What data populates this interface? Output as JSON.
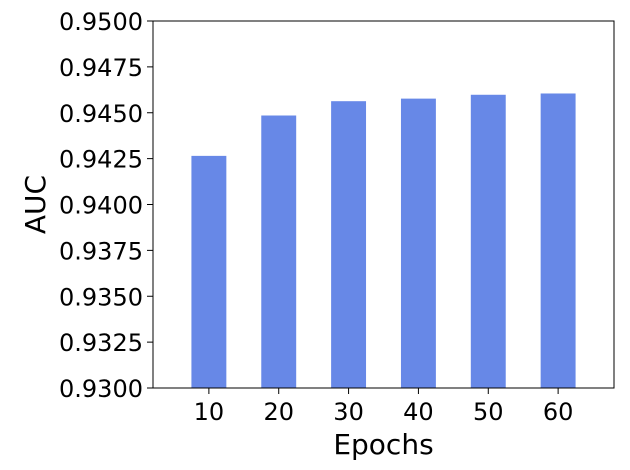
{
  "chart_data": {
    "type": "bar",
    "title": "",
    "xlabel": "Epochs",
    "ylabel": "AUC",
    "categories": [
      "10",
      "20",
      "30",
      "40",
      "50",
      "60"
    ],
    "values": [
      0.94265,
      0.94485,
      0.94563,
      0.94577,
      0.94598,
      0.94605
    ],
    "ylim": [
      0.93,
      0.95
    ],
    "yticks": [
      0.93,
      0.9325,
      0.935,
      0.9375,
      0.94,
      0.9425,
      0.945,
      0.9475,
      0.95
    ],
    "ytick_labels": [
      "0.9300",
      "0.9325",
      "0.9350",
      "0.9375",
      "0.9400",
      "0.9425",
      "0.9450",
      "0.9475",
      "0.9500"
    ],
    "grid": false,
    "legend": "none",
    "bar_color": "#6788e7"
  }
}
